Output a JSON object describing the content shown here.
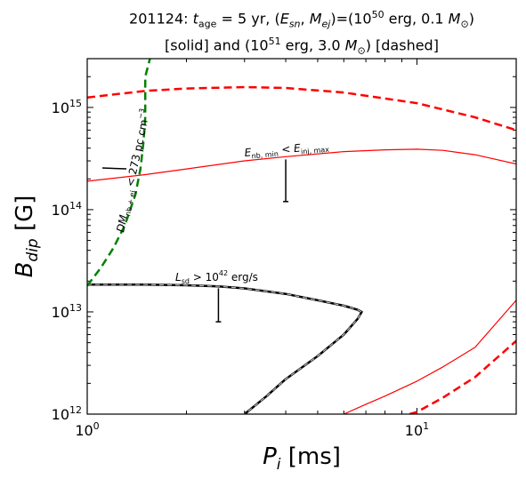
{
  "title_line1": "201124: t_age = 5 yr, (E_sn, M_ej)=(10^50 erg, 0.1 M_⊙)",
  "title_line2": "[solid] and (10^51 erg, 3.0 M_⊙) [dashed]",
  "chart_data": {
    "type": "line",
    "xlabel": "P_i [ms]",
    "ylabel": "B_dip [G]",
    "x_scale": "log",
    "y_scale": "log",
    "xlim": [
      1,
      20
    ],
    "ylim": [
      1000000000000.0,
      3000000000000000.0
    ],
    "x_ticks": [
      {
        "value": 1,
        "label": "10^0"
      },
      {
        "value": 10,
        "label": "10^1"
      }
    ],
    "y_ticks": [
      {
        "value": 1000000000000.0,
        "label": "10^12"
      },
      {
        "value": 10000000000000.0,
        "label": "10^13"
      },
      {
        "value": 100000000000000.0,
        "label": "10^14"
      },
      {
        "value": 1000000000000000.0,
        "label": "10^15"
      }
    ],
    "annotations": [
      {
        "text": "E_nb,min < E_inj,max",
        "x": 4.0,
        "y": 340000000000000.0
      },
      {
        "text": "L_sd > 10^42 erg/s",
        "x": 2.5,
        "y": 21000000000000.0
      },
      {
        "text": "DM_nb+ej < 273 pc cm^-3",
        "x": 1.3,
        "y": 220000000000000.0
      }
    ],
    "series": [
      {
        "color": "#ff0000",
        "style": "dashed",
        "width": 2.5,
        "x": [
          1,
          1.5,
          2,
          3,
          4,
          6,
          10,
          15,
          20
        ],
        "y": [
          1250000000000000.0,
          1450000000000000.0,
          1530000000000000.0,
          1580000000000000.0,
          1550000000000000.0,
          1400000000000000.0,
          1100000000000000.0,
          800000000000000.0,
          600000000000000.0
        ]
      },
      {
        "color": "#ff0000",
        "style": "solid",
        "width": 1.2,
        "x": [
          1,
          1.5,
          2,
          3,
          4,
          6,
          8,
          10,
          12,
          15,
          20
        ],
        "y": [
          190000000000000.0,
          220000000000000.0,
          250000000000000.0,
          300000000000000.0,
          330000000000000.0,
          370000000000000.0,
          385000000000000.0,
          390000000000000.0,
          380000000000000.0,
          345000000000000.0,
          280000000000000.0
        ]
      },
      {
        "color": "#ff0000",
        "style": "solid",
        "width": 1.2,
        "x": [
          6,
          7,
          8,
          10,
          12,
          15,
          20
        ],
        "y": [
          1000000000000.0,
          1250000000000.0,
          1500000000000.0,
          2100000000000.0,
          2900000000000.0,
          4500000000000.0,
          13000000000000.0
        ]
      },
      {
        "color": "#ff0000",
        "style": "dashed",
        "width": 2.5,
        "x": [
          9.5,
          10,
          12,
          15,
          20
        ],
        "y": [
          1000000000000.0,
          1050000000000.0,
          1450000000000.0,
          2300000000000.0,
          5200000000000.0
        ]
      },
      {
        "color": "#000000",
        "style": "solid",
        "width": 2.5,
        "x": [
          1,
          1.5,
          2,
          2.5,
          3,
          4,
          5,
          6,
          6.6,
          6.8,
          6.6,
          6,
          5,
          4,
          3.5,
          3
        ],
        "y": [
          18500000000000.0,
          18500000000000.0,
          18200000000000.0,
          17800000000000.0,
          17000000000000.0,
          15000000000000.0,
          13000000000000.0,
          11500000000000.0,
          10500000000000.0,
          10000000000000.0,
          8500000000000.0,
          6000000000000.0,
          3700000000000.0,
          2200000000000.0,
          1500000000000.0,
          1000000000000.0
        ]
      },
      {
        "color": "#bbbbbb",
        "style": "dashed",
        "width": 1.2,
        "x": [
          1,
          1.5,
          2,
          2.5,
          3,
          4,
          5,
          6,
          6.6,
          6.8,
          6.6,
          6,
          5,
          4,
          3.5,
          3
        ],
        "y": [
          18500000000000.0,
          18500000000000.0,
          18200000000000.0,
          17800000000000.0,
          17000000000000.0,
          15000000000000.0,
          13000000000000.0,
          11500000000000.0,
          10500000000000.0,
          10000000000000.0,
          8500000000000.0,
          6000000000000.0,
          3700000000000.0,
          2200000000000.0,
          1500000000000.0,
          1000000000000.0
        ]
      },
      {
        "color": "#008000",
        "style": "dashed",
        "width": 2.5,
        "x": [
          1,
          1.1,
          1.2,
          1.3,
          1.4,
          1.45,
          1.48,
          1.5,
          1.5,
          1.55
        ],
        "y": [
          18000000000000.0,
          27000000000000.0,
          42000000000000.0,
          70000000000000.0,
          140000000000000.0,
          250000000000000.0,
          450000000000000.0,
          800000000000000.0,
          2000000000000000.0,
          3000000000000000.0
        ]
      }
    ],
    "markers": [
      {
        "x": 4.0,
        "y_top": 310000000000000.0,
        "y_bottom": 120000000000000.0
      },
      {
        "x": 2.5,
        "y_top": 17000000000000.0,
        "y_bottom": 8000000000000.0
      }
    ]
  }
}
